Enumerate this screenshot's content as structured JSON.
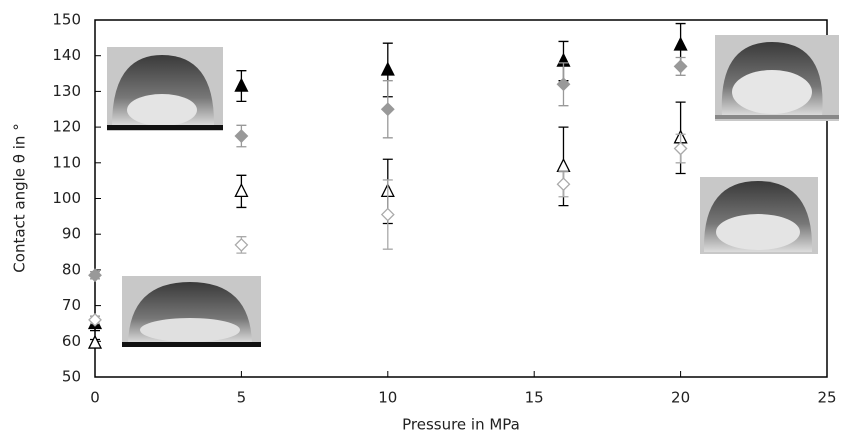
{
  "chart_data": {
    "type": "scatter",
    "x_label": "Pressure in MPa",
    "y_label": "Contact angle θ in °",
    "xlim": [
      0,
      25
    ],
    "xticks": [
      0,
      5,
      10,
      15,
      20,
      25
    ],
    "ylim": [
      50,
      150
    ],
    "yticks": [
      50,
      60,
      70,
      80,
      90,
      100,
      110,
      120,
      130,
      140,
      150
    ],
    "series": [
      {
        "color": "#000000",
        "marker": "triangle",
        "filled": true,
        "x": [
          0,
          5,
          10,
          16,
          20
        ],
        "values": [
          65,
          131.5,
          136,
          138.5,
          143
        ],
        "errors": [
          2,
          4.3,
          7.5,
          5.5,
          6
        ]
      },
      {
        "color": "#999999",
        "marker": "diamond",
        "filled": true,
        "x": [
          0,
          5,
          10,
          16,
          20
        ],
        "values": [
          78.5,
          117.5,
          125,
          132,
          137
        ],
        "errors": [
          1,
          3,
          8,
          6,
          2.5
        ]
      },
      {
        "color": "#000000",
        "marker": "triangle",
        "filled": false,
        "x": [
          0,
          5,
          10,
          16,
          20
        ],
        "values": [
          59.5,
          102,
          102,
          109,
          117
        ],
        "errors": [
          1,
          4.5,
          9,
          11,
          10
        ]
      },
      {
        "color": "#aaaaaa",
        "marker": "diamond",
        "filled": false,
        "x": [
          0,
          5,
          10,
          16,
          20
        ],
        "values": [
          66,
          87,
          95.5,
          104,
          114
        ],
        "errors": [
          1,
          2.3,
          9.7,
          3.5,
          4
        ]
      }
    ]
  }
}
